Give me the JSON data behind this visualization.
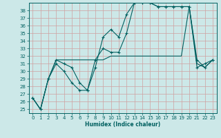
{
  "xlabel": "Humidex (Indice chaleur)",
  "bg_color": "#cce8e8",
  "grid_color": "#b0d0d0",
  "line_color": "#006060",
  "xlim": [
    -0.5,
    23.5
  ],
  "ylim": [
    24.5,
    39.0
  ],
  "xticks": [
    0,
    1,
    2,
    3,
    4,
    5,
    6,
    7,
    8,
    9,
    10,
    11,
    12,
    13,
    14,
    15,
    16,
    17,
    18,
    19,
    20,
    21,
    22,
    23
  ],
  "yticks": [
    25,
    26,
    27,
    28,
    29,
    30,
    31,
    32,
    33,
    34,
    35,
    36,
    37,
    38
  ],
  "series1_x": [
    0,
    1,
    2,
    3,
    4,
    5,
    6,
    7,
    8,
    9,
    10,
    11,
    12,
    13,
    14,
    15,
    16,
    17,
    18,
    19,
    20,
    21,
    22,
    23
  ],
  "series1_y": [
    26.5,
    25.0,
    29.0,
    31.0,
    30.0,
    28.5,
    27.5,
    27.5,
    30.5,
    34.5,
    35.5,
    34.5,
    37.5,
    39.0,
    39.0,
    39.0,
    38.5,
    38.5,
    38.5,
    38.5,
    38.5,
    30.5,
    31.0,
    31.5
  ],
  "series2_x": [
    0,
    1,
    2,
    3,
    4,
    5,
    6,
    7,
    8,
    9,
    10,
    11,
    12,
    13,
    14,
    15,
    16,
    17,
    18,
    19,
    20,
    21,
    22,
    23
  ],
  "series2_y": [
    26.5,
    25.0,
    29.0,
    31.5,
    31.0,
    30.5,
    28.5,
    27.5,
    31.5,
    33.0,
    32.5,
    32.5,
    35.0,
    39.0,
    39.0,
    39.0,
    38.5,
    38.5,
    38.5,
    38.5,
    38.5,
    31.5,
    30.5,
    31.5
  ],
  "series3_x": [
    0,
    1,
    2,
    3,
    4,
    5,
    6,
    7,
    8,
    9,
    10,
    11,
    12,
    13,
    14,
    15,
    16,
    17,
    18,
    19,
    20,
    21,
    22,
    23
  ],
  "series3_y": [
    26.5,
    25.0,
    29.0,
    31.5,
    31.5,
    31.5,
    31.5,
    31.5,
    31.5,
    31.5,
    32.0,
    32.0,
    32.0,
    32.0,
    32.0,
    32.0,
    32.0,
    32.0,
    32.0,
    32.0,
    38.5,
    31.0,
    30.5,
    31.5
  ],
  "xlabel_fontsize": 5.5,
  "tick_fontsize": 5.0
}
